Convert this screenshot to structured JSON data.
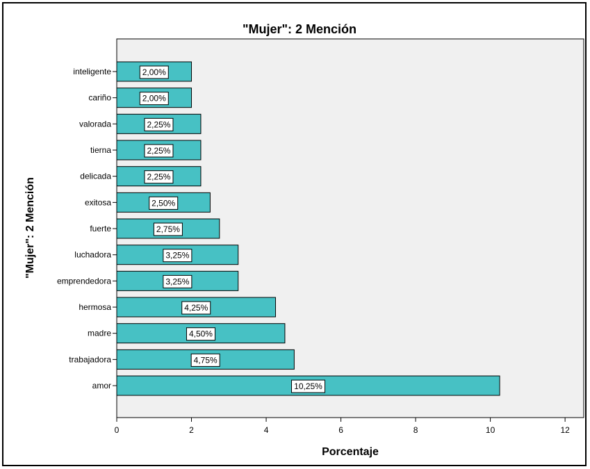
{
  "chart_data": {
    "type": "bar",
    "orientation": "horizontal",
    "title": "\"Mujer\": 2 Mención",
    "xlabel": "Porcentaje",
    "ylabel": "\"Mujer\": 2 Mención",
    "xlim": [
      0,
      12.5
    ],
    "xticks": [
      0,
      2,
      4,
      6,
      8,
      10,
      12
    ],
    "categories": [
      "inteligente",
      "cariño",
      "valorada",
      "tierna",
      "delicada",
      "exitosa",
      "fuerte",
      "luchadora",
      "emprendedora",
      "hermosa",
      "madre",
      "trabajadora",
      "amor"
    ],
    "values": [
      2.0,
      2.0,
      2.25,
      2.25,
      2.25,
      2.5,
      2.75,
      3.25,
      3.25,
      4.25,
      4.5,
      4.75,
      10.25
    ],
    "data_labels": [
      "2,00%",
      "2,00%",
      "2,25%",
      "2,25%",
      "2,25%",
      "2,50%",
      "2,75%",
      "3,25%",
      "3,25%",
      "4,25%",
      "4,50%",
      "4,75%",
      "10,25%"
    ],
    "bar_color": "#47c1c4",
    "plot_background": "#f0f0f0",
    "grid": false,
    "legend": false
  }
}
